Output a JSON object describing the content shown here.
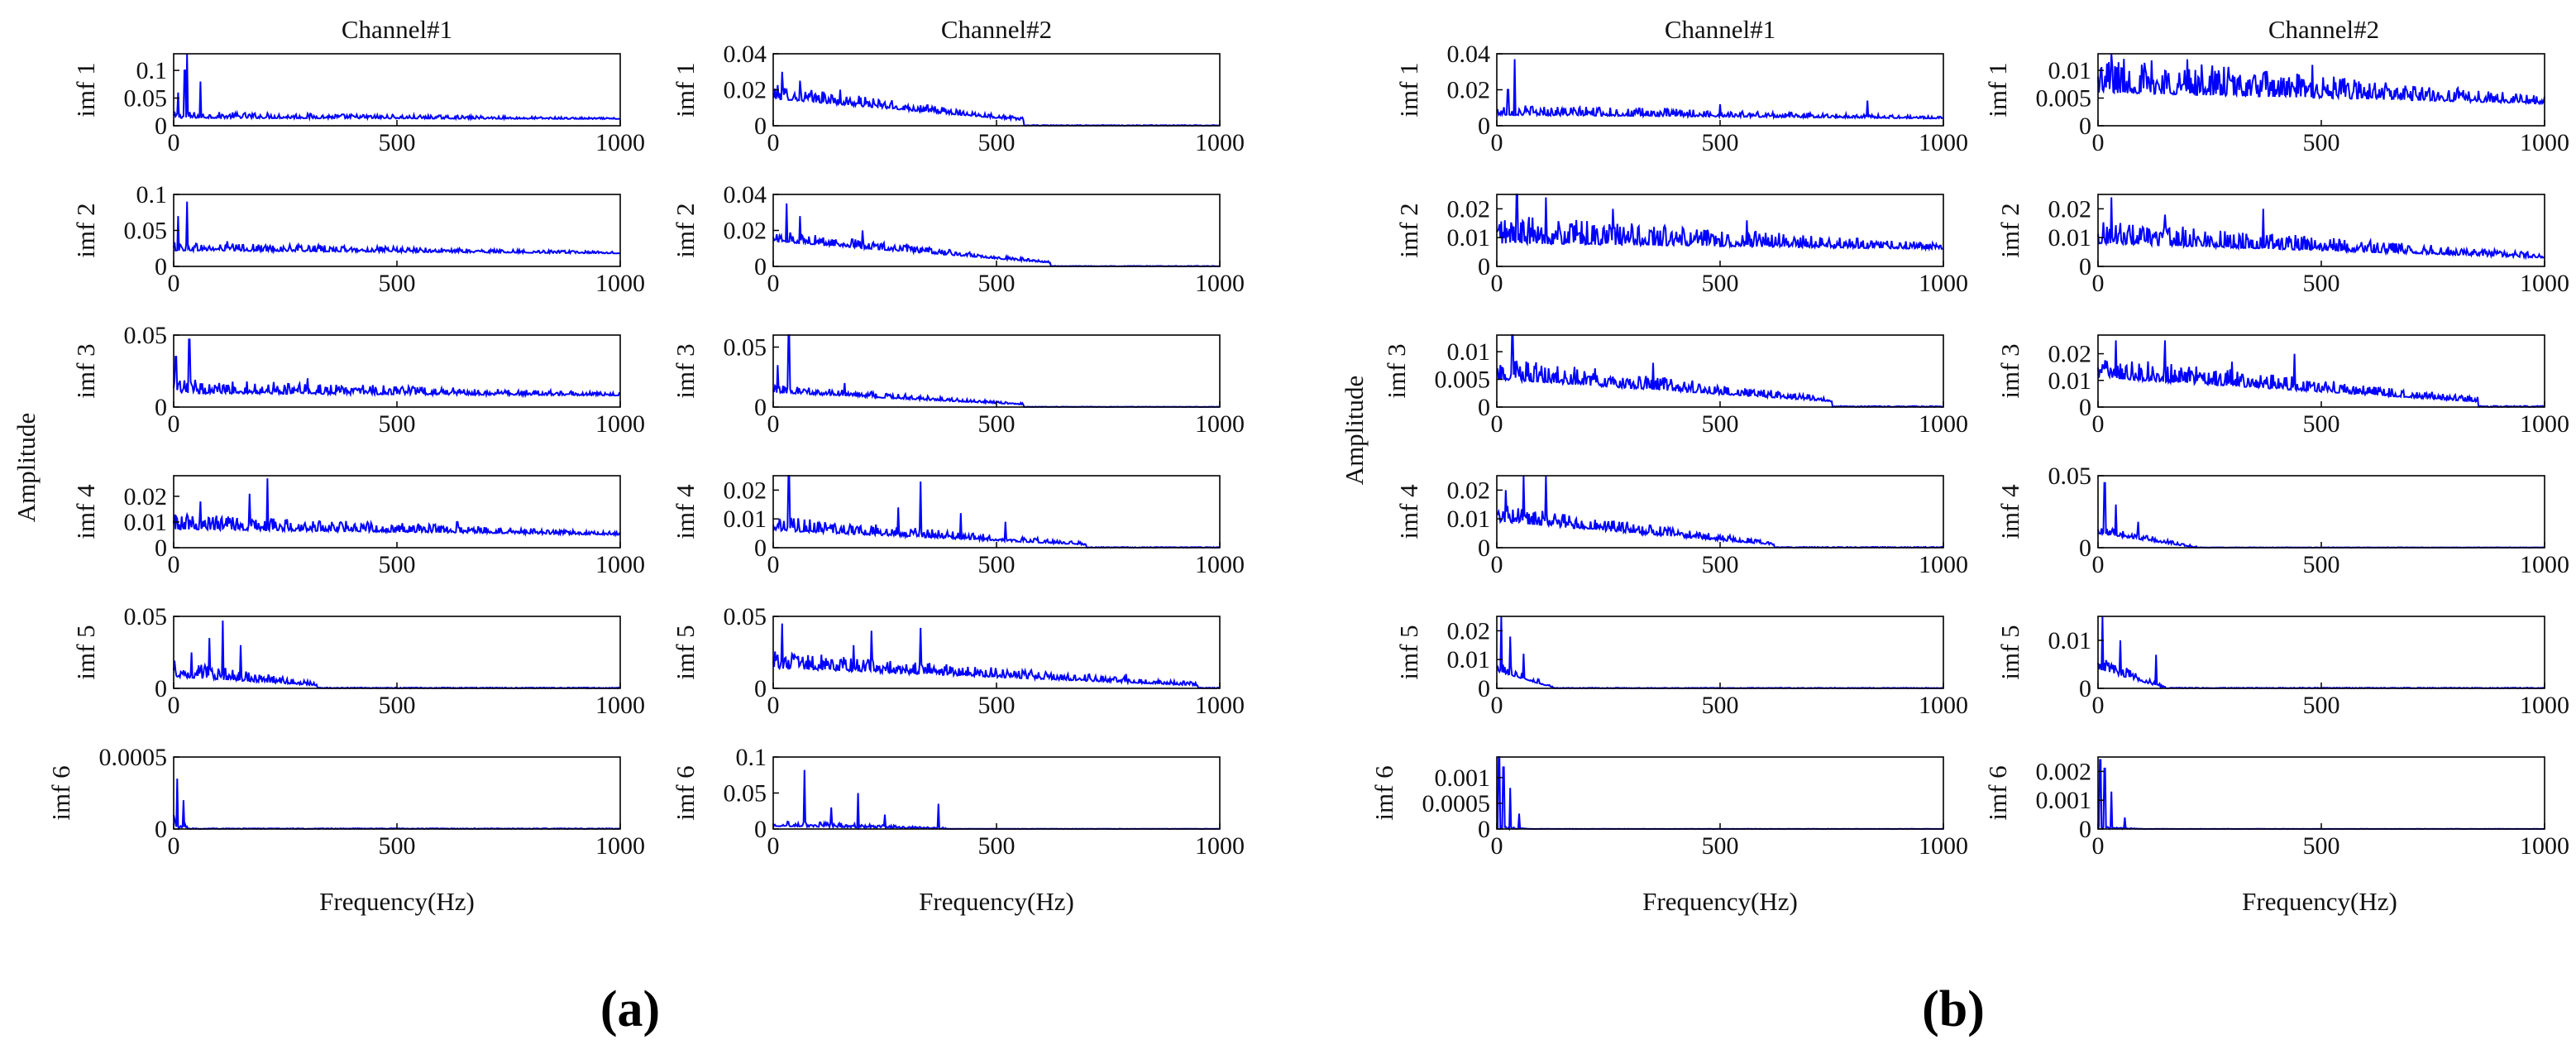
{
  "figure": {
    "xlabel": "Frequency(Hz)",
    "ylabel": "Amplitude",
    "panel_labels": [
      "(a)",
      "(b)"
    ]
  },
  "chart_data": [
    {
      "panel": "(a)",
      "channel": "Channel#1",
      "type": "line",
      "xlim": [
        0,
        1000
      ],
      "xticks": [
        0,
        500,
        1000
      ],
      "series_color": "#0000ff",
      "rows": [
        {
          "imf": "imf 1",
          "ylim": [
            0,
            0.13
          ],
          "yticks": [
            0,
            0.05,
            0.1
          ],
          "peaks": [
            [
              30,
              0.13
            ],
            [
              25,
              0.1
            ],
            [
              60,
              0.08
            ],
            [
              10,
              0.06
            ]
          ],
          "base": 0.012,
          "decay": 0.002,
          "noise": 0.012
        },
        {
          "imf": "imf 2",
          "ylim": [
            0,
            0.1
          ],
          "yticks": [
            0,
            0.05,
            0.1
          ],
          "peaks": [
            [
              30,
              0.09
            ],
            [
              10,
              0.07
            ],
            [
              120,
              0.035
            ]
          ],
          "base": 0.018,
          "decay": 0.004,
          "noise": 0.012
        },
        {
          "imf": "imf 3",
          "ylim": [
            0,
            0.05
          ],
          "yticks": [
            0,
            0.05
          ],
          "peaks": [
            [
              35,
              0.047
            ],
            [
              5,
              0.035
            ],
            [
              300,
              0.02
            ]
          ],
          "base": 0.008,
          "decay": 0.0015,
          "noise": 0.01
        },
        {
          "imf": "imf 4",
          "ylim": [
            0,
            0.028
          ],
          "yticks": [
            0,
            0.01,
            0.02
          ],
          "peaks": [
            [
              210,
              0.027
            ],
            [
              170,
              0.021
            ],
            [
              60,
              0.018
            ],
            [
              635,
              0.01
            ]
          ],
          "base": 0.005,
          "decay": 0.0022,
          "noise": 0.006
        },
        {
          "imf": "imf 5",
          "ylim": [
            0,
            0.05
          ],
          "yticks": [
            0,
            0.05
          ],
          "peaks": [
            [
              110,
              0.047
            ],
            [
              80,
              0.035
            ],
            [
              150,
              0.03
            ],
            [
              40,
              0.025
            ]
          ],
          "base": 0.002,
          "decay": 0.006,
          "noise": 0.012,
          "cutoff": 320
        },
        {
          "imf": "imf 6",
          "ylim": [
            0,
            0.0005
          ],
          "yticks": [
            0,
            0.0005
          ],
          "peaks": [
            [
              8,
              0.00035
            ],
            [
              22,
              0.0002
            ]
          ],
          "base": 0.0,
          "decay": 0.0,
          "noise": 0.0001,
          "cutoff": 40
        }
      ]
    },
    {
      "panel": "(a)",
      "channel": "Channel#2",
      "type": "line",
      "xlim": [
        0,
        1000
      ],
      "xticks": [
        0,
        500,
        1000
      ],
      "series_color": "#0000ff",
      "rows": [
        {
          "imf": "imf 1",
          "ylim": [
            0,
            0.04
          ],
          "yticks": [
            0,
            0.02,
            0.04
          ],
          "peaks": [
            [
              20,
              0.03
            ],
            [
              60,
              0.025
            ],
            [
              150,
              0.02
            ]
          ],
          "base": 0.003,
          "decay": 0.012,
          "noise": 0.008,
          "cutoff": 560
        },
        {
          "imf": "imf 2",
          "ylim": [
            0,
            0.04
          ],
          "yticks": [
            0,
            0.02,
            0.04
          ],
          "peaks": [
            [
              30,
              0.035
            ],
            [
              60,
              0.028
            ],
            [
              200,
              0.02
            ]
          ],
          "base": 0.002,
          "decay": 0.012,
          "noise": 0.006,
          "cutoff": 620
        },
        {
          "imf": "imf 3",
          "ylim": [
            0,
            0.06
          ],
          "yticks": [
            0,
            0.05
          ],
          "peaks": [
            [
              35,
              0.06
            ],
            [
              10,
              0.035
            ],
            [
              160,
              0.02
            ]
          ],
          "base": 0.002,
          "decay": 0.01,
          "noise": 0.007,
          "cutoff": 560
        },
        {
          "imf": "imf 4",
          "ylim": [
            0,
            0.025
          ],
          "yticks": [
            0,
            0.01,
            0.02
          ],
          "peaks": [
            [
              35,
              0.025
            ],
            [
              330,
              0.023
            ],
            [
              280,
              0.014
            ],
            [
              420,
              0.012
            ],
            [
              520,
              0.009
            ]
          ],
          "base": 0.001,
          "decay": 0.005,
          "noise": 0.005,
          "cutoff": 700
        },
        {
          "imf": "imf 5",
          "ylim": [
            0,
            0.05
          ],
          "yticks": [
            0,
            0.05
          ],
          "peaks": [
            [
              20,
              0.045
            ],
            [
              220,
              0.04
            ],
            [
              330,
              0.042
            ],
            [
              180,
              0.03
            ],
            [
              790,
              0.01
            ]
          ],
          "base": 0.002,
          "decay": 0.012,
          "noise": 0.012,
          "cutoff": 950
        },
        {
          "imf": "imf 6",
          "ylim": [
            0,
            0.1
          ],
          "yticks": [
            0,
            0.05,
            0.1
          ],
          "peaks": [
            [
              70,
              0.082
            ],
            [
              190,
              0.05
            ],
            [
              130,
              0.03
            ],
            [
              370,
              0.035
            ],
            [
              250,
              0.02
            ]
          ],
          "base": 0.0,
          "decay": 0.004,
          "noise": 0.008,
          "cutoff": 400
        }
      ]
    },
    {
      "panel": "(b)",
      "channel": "Channel#1",
      "type": "line",
      "xlim": [
        0,
        1000
      ],
      "xticks": [
        0,
        500,
        1000
      ],
      "series_color": "#0000ff",
      "rows": [
        {
          "imf": "imf 1",
          "ylim": [
            0,
            0.04
          ],
          "yticks": [
            0,
            0.02,
            0.04
          ],
          "peaks": [
            [
              40,
              0.037
            ],
            [
              25,
              0.02
            ],
            [
              500,
              0.012
            ],
            [
              830,
              0.014
            ]
          ],
          "base": 0.004,
          "decay": 0.002,
          "noise": 0.006
        },
        {
          "imf": "imf 2",
          "ylim": [
            0,
            0.025
          ],
          "yticks": [
            0,
            0.01,
            0.02
          ],
          "peaks": [
            [
              45,
              0.025
            ],
            [
              110,
              0.024
            ],
            [
              260,
              0.02
            ],
            [
              560,
              0.016
            ]
          ],
          "base": 0.006,
          "decay": 0.002,
          "noise": 0.01
        },
        {
          "imf": "imf 3",
          "ylim": [
            0,
            0.013
          ],
          "yticks": [
            0,
            0.005,
            0.01
          ],
          "peaks": [
            [
              35,
              0.013
            ],
            [
              350,
              0.008
            ],
            [
              220,
              0.007
            ]
          ],
          "base": 0.001,
          "decay": 0.004,
          "noise": 0.004,
          "cutoff": 750
        },
        {
          "imf": "imf 4",
          "ylim": [
            0,
            0.025
          ],
          "yticks": [
            0,
            0.01,
            0.02
          ],
          "peaks": [
            [
              60,
              0.025
            ],
            [
              110,
              0.025
            ],
            [
              20,
              0.02
            ]
          ],
          "base": 0.001,
          "decay": 0.008,
          "noise": 0.006,
          "cutoff": 620
        },
        {
          "imf": "imf 5",
          "ylim": [
            0,
            0.025
          ],
          "yticks": [
            0,
            0.01,
            0.02
          ],
          "peaks": [
            [
              10,
              0.025
            ],
            [
              30,
              0.018
            ],
            [
              60,
              0.012
            ]
          ],
          "base": 0.0,
          "decay": 0.006,
          "noise": 0.004,
          "cutoff": 130
        },
        {
          "imf": "imf 6",
          "ylim": [
            0,
            0.0014
          ],
          "yticks": [
            0,
            0.0005,
            0.001
          ],
          "peaks": [
            [
              5,
              0.0014
            ],
            [
              15,
              0.0012
            ],
            [
              30,
              0.0008
            ],
            [
              50,
              0.0003
            ]
          ],
          "base": 0.0,
          "decay": 0.0,
          "noise": 6e-05,
          "cutoff": 80
        }
      ]
    },
    {
      "panel": "(b)",
      "channel": "Channel#2",
      "type": "line",
      "xlim": [
        0,
        1000
      ],
      "xticks": [
        0,
        500,
        1000
      ],
      "series_color": "#0000ff",
      "rows": [
        {
          "imf": "imf 1",
          "ylim": [
            0,
            0.013
          ],
          "yticks": [
            0,
            0.005,
            0.01
          ],
          "peaks": [
            [
              30,
              0.013
            ],
            [
              200,
              0.012
            ],
            [
              480,
              0.011
            ]
          ],
          "base": 0.004,
          "decay": 0.002,
          "noise": 0.007
        },
        {
          "imf": "imf 2",
          "ylim": [
            0,
            0.025
          ],
          "yticks": [
            0,
            0.01,
            0.02
          ],
          "peaks": [
            [
              30,
              0.024
            ],
            [
              370,
              0.02
            ],
            [
              150,
              0.018
            ]
          ],
          "base": 0.003,
          "decay": 0.005,
          "noise": 0.008
        },
        {
          "imf": "imf 3",
          "ylim": [
            0,
            0.027
          ],
          "yticks": [
            0,
            0.01,
            0.02
          ],
          "peaks": [
            [
              40,
              0.025
            ],
            [
              150,
              0.025
            ],
            [
              440,
              0.02
            ],
            [
              300,
              0.017
            ]
          ],
          "base": 0.002,
          "decay": 0.009,
          "noise": 0.009,
          "cutoff": 850
        },
        {
          "imf": "imf 4",
          "ylim": [
            0,
            0.05
          ],
          "yticks": [
            0,
            0.05
          ],
          "peaks": [
            [
              15,
              0.045
            ],
            [
              40,
              0.03
            ],
            [
              90,
              0.018
            ]
          ],
          "base": 0.0,
          "decay": 0.01,
          "noise": 0.006,
          "cutoff": 220
        },
        {
          "imf": "imf 5",
          "ylim": [
            0,
            0.015
          ],
          "yticks": [
            0,
            0.01
          ],
          "peaks": [
            [
              10,
              0.015
            ],
            [
              50,
              0.01
            ],
            [
              130,
              0.007
            ]
          ],
          "base": 0.0,
          "decay": 0.004,
          "noise": 0.003,
          "cutoff": 150
        },
        {
          "imf": "imf 6",
          "ylim": [
            0,
            0.0025
          ],
          "yticks": [
            0,
            0.001,
            0.002
          ],
          "peaks": [
            [
              5,
              0.0024
            ],
            [
              15,
              0.0021
            ],
            [
              30,
              0.0013
            ],
            [
              60,
              0.0004
            ]
          ],
          "base": 0.0,
          "decay": 0.0,
          "noise": 0.0001,
          "cutoff": 110
        }
      ]
    }
  ]
}
